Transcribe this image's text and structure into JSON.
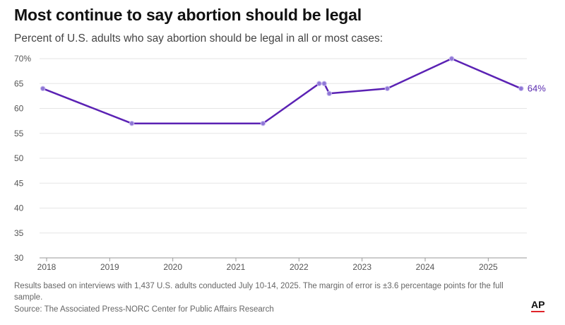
{
  "header": {
    "title": "Most continue to say abortion should be legal",
    "subtitle": "Percent of U.S. adults who say abortion should be legal in all or most cases:"
  },
  "chart_data": {
    "type": "line",
    "title": "Most continue to say abortion should be legal",
    "subtitle": "Percent of U.S. adults who say abortion should be legal in all or most cases:",
    "xlabel": "",
    "ylabel": "",
    "xlim": [
      2018.0,
      2025.5
    ],
    "ylim": [
      30,
      70
    ],
    "x_ticks": [
      "2018",
      "2019",
      "2020",
      "2021",
      "2022",
      "2023",
      "2024",
      "2025"
    ],
    "y_ticks": [
      "70%",
      "65",
      "60",
      "55",
      "50",
      "45",
      "40",
      "35",
      "30"
    ],
    "grid": true,
    "series": [
      {
        "color": "#5b22b4",
        "points": [
          {
            "x": 2017.94,
            "y": 64
          },
          {
            "x": 2019.35,
            "y": 57
          },
          {
            "x": 2021.43,
            "y": 57
          },
          {
            "x": 2022.32,
            "y": 65
          },
          {
            "x": 2022.4,
            "y": 65
          },
          {
            "x": 2022.48,
            "y": 63
          },
          {
            "x": 2023.4,
            "y": 64
          },
          {
            "x": 2024.42,
            "y": 70
          },
          {
            "x": 2025.52,
            "y": 64
          }
        ],
        "end_label": "64%"
      }
    ]
  },
  "footer": {
    "note": "Results based on interviews with 1,437 U.S. adults conducted July 10-14, 2025. The margin of error is ±3.6 percentage points for the full sample.",
    "source": "Source: The Associated Press-NORC Center for Public Affairs Research",
    "logo": "AP"
  }
}
